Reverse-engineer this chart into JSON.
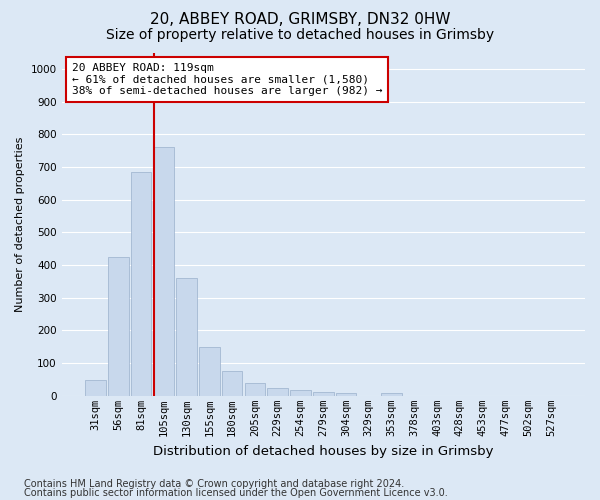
{
  "title1": "20, ABBEY ROAD, GRIMSBY, DN32 0HW",
  "title2": "Size of property relative to detached houses in Grimsby",
  "xlabel": "Distribution of detached houses by size in Grimsby",
  "ylabel": "Number of detached properties",
  "categories": [
    "31sqm",
    "56sqm",
    "81sqm",
    "105sqm",
    "130sqm",
    "155sqm",
    "180sqm",
    "205sqm",
    "229sqm",
    "254sqm",
    "279sqm",
    "304sqm",
    "329sqm",
    "353sqm",
    "378sqm",
    "403sqm",
    "428sqm",
    "453sqm",
    "477sqm",
    "502sqm",
    "527sqm"
  ],
  "values": [
    50,
    425,
    685,
    760,
    360,
    150,
    75,
    38,
    25,
    18,
    12,
    8,
    0,
    10,
    0,
    0,
    0,
    0,
    0,
    0,
    0
  ],
  "bar_color": "#c8d8ec",
  "bar_edge_color": "#9ab0cc",
  "vline_index": 3,
  "vline_color": "#cc0000",
  "ylim": [
    0,
    1050
  ],
  "yticks": [
    0,
    100,
    200,
    300,
    400,
    500,
    600,
    700,
    800,
    900,
    1000
  ],
  "annotation_text": "20 ABBEY ROAD: 119sqm\n← 61% of detached houses are smaller (1,580)\n38% of semi-detached houses are larger (982) →",
  "annotation_box_facecolor": "#ffffff",
  "annotation_box_edgecolor": "#cc0000",
  "background_color": "#dce8f5",
  "grid_color": "#ffffff",
  "footer1": "Contains HM Land Registry data © Crown copyright and database right 2024.",
  "footer2": "Contains public sector information licensed under the Open Government Licence v3.0.",
  "title1_fontsize": 11,
  "title2_fontsize": 10,
  "xlabel_fontsize": 9.5,
  "ylabel_fontsize": 8,
  "tick_fontsize": 7.5,
  "annotation_fontsize": 8,
  "footer_fontsize": 7
}
